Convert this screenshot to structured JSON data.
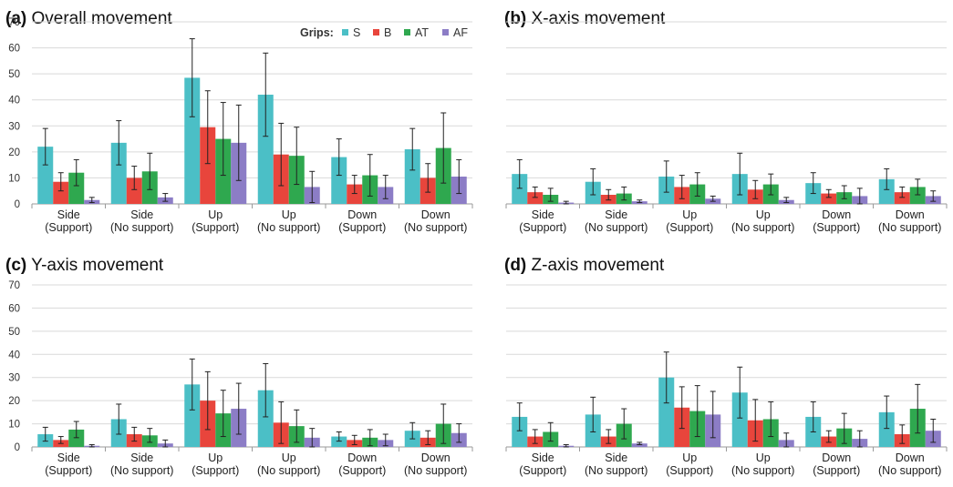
{
  "legend": {
    "title": "Grips:",
    "entries": [
      {
        "label": "S",
        "color": "#4BBFC6"
      },
      {
        "label": "B",
        "color": "#E8453C"
      },
      {
        "label": "AT",
        "color": "#2FA84F"
      },
      {
        "label": "AF",
        "color": "#8C7DC6"
      }
    ]
  },
  "chart_data": [
    {
      "type": "bar",
      "panel_letter": "(a)",
      "title": "Overall movement",
      "categories": [
        [
          "Side",
          "(Support)"
        ],
        [
          "Side",
          "(No support)"
        ],
        [
          "Up",
          "(Support)"
        ],
        [
          "Up",
          "(No support)"
        ],
        [
          "Down",
          "(Support)"
        ],
        [
          "Down",
          "(No support)"
        ]
      ],
      "ylim": [
        0,
        70
      ],
      "yticks": [
        0,
        10,
        20,
        30,
        40,
        50,
        60,
        70
      ],
      "show_ytick_labels": true,
      "grid": "horizontal",
      "show_legend": true,
      "legend_position": "top-right",
      "series": [
        {
          "name": "S",
          "values": [
            22,
            23.5,
            48.5,
            42,
            18,
            21
          ],
          "errors": [
            7,
            8.5,
            15,
            16,
            7,
            8
          ]
        },
        {
          "name": "B",
          "values": [
            8.5,
            10,
            29.5,
            19,
            7.5,
            10
          ],
          "errors": [
            3.5,
            4.5,
            14,
            12,
            3.5,
            5.5
          ]
        },
        {
          "name": "AT",
          "values": [
            12,
            12.5,
            25,
            18.5,
            11,
            21.5
          ],
          "errors": [
            5,
            7,
            14,
            11,
            8,
            13.5
          ]
        },
        {
          "name": "AF",
          "values": [
            1.5,
            2.5,
            23.5,
            6.5,
            6.5,
            10.5
          ],
          "errors": [
            1,
            1.5,
            14.5,
            6,
            4.5,
            6.5
          ]
        }
      ]
    },
    {
      "type": "bar",
      "panel_letter": "(b)",
      "title": "X-axis movement",
      "categories": [
        [
          "Side",
          "(Support)"
        ],
        [
          "Side",
          "(No support)"
        ],
        [
          "Up",
          "(Support)"
        ],
        [
          "Up",
          "(No support)"
        ],
        [
          "Down",
          "(Support)"
        ],
        [
          "Down",
          "(No support)"
        ]
      ],
      "ylim": [
        0,
        70
      ],
      "yticks": [
        0,
        10,
        20,
        30,
        40,
        50,
        60,
        70
      ],
      "show_ytick_labels": false,
      "grid": "horizontal",
      "show_legend": false,
      "series": [
        {
          "name": "S",
          "values": [
            11.5,
            8.5,
            10.5,
            11.5,
            8,
            9.5
          ],
          "errors": [
            5.5,
            5,
            6,
            8,
            4,
            4
          ]
        },
        {
          "name": "B",
          "values": [
            4.5,
            3.5,
            6.5,
            5.5,
            4,
            4.5
          ],
          "errors": [
            2,
            2,
            4.5,
            3.5,
            1.5,
            2
          ]
        },
        {
          "name": "AT",
          "values": [
            3.5,
            4,
            7.5,
            7.5,
            4.5,
            6.5
          ],
          "errors": [
            2.5,
            2.5,
            4.5,
            4,
            2.5,
            3
          ]
        },
        {
          "name": "AF",
          "values": [
            0.5,
            1,
            2,
            1.5,
            3,
            3
          ],
          "errors": [
            0.5,
            0.5,
            1,
            1,
            3,
            2
          ]
        }
      ]
    },
    {
      "type": "bar",
      "panel_letter": "(c)",
      "title": "Y-axis movement",
      "categories": [
        [
          "Side",
          "(Support)"
        ],
        [
          "Side",
          "(No support)"
        ],
        [
          "Up",
          "(Support)"
        ],
        [
          "Up",
          "(No support)"
        ],
        [
          "Down",
          "(Support)"
        ],
        [
          "Down",
          "(No support)"
        ]
      ],
      "ylim": [
        0,
        70
      ],
      "yticks": [
        0,
        10,
        20,
        30,
        40,
        50,
        60,
        70
      ],
      "show_ytick_labels": true,
      "grid": "horizontal",
      "show_legend": false,
      "series": [
        {
          "name": "S",
          "values": [
            5.5,
            12,
            27,
            24.5,
            4.5,
            7
          ],
          "errors": [
            3,
            6.5,
            11,
            11.5,
            2,
            3.5
          ]
        },
        {
          "name": "B",
          "values": [
            3,
            5.5,
            20,
            10.5,
            3,
            4
          ],
          "errors": [
            1.5,
            3,
            12.5,
            9,
            2,
            3
          ]
        },
        {
          "name": "AT",
          "values": [
            7.5,
            5,
            14.5,
            9,
            4,
            10
          ],
          "errors": [
            3.5,
            3,
            10,
            7,
            3.5,
            8.5
          ]
        },
        {
          "name": "AF",
          "values": [
            0.5,
            1.5,
            16.5,
            4,
            3,
            6
          ],
          "errors": [
            0.5,
            1.5,
            11,
            4,
            2.5,
            4
          ]
        }
      ]
    },
    {
      "type": "bar",
      "panel_letter": "(d)",
      "title": "Z-axis movement",
      "categories": [
        [
          "Side",
          "(Support)"
        ],
        [
          "Side",
          "(No support)"
        ],
        [
          "Up",
          "(Support)"
        ],
        [
          "Up",
          "(No support)"
        ],
        [
          "Down",
          "(Support)"
        ],
        [
          "Down",
          "(No support)"
        ]
      ],
      "ylim": [
        0,
        70
      ],
      "yticks": [
        0,
        10,
        20,
        30,
        40,
        50,
        60,
        70
      ],
      "show_ytick_labels": false,
      "grid": "horizontal",
      "show_legend": false,
      "series": [
        {
          "name": "S",
          "values": [
            13,
            14,
            30,
            23.5,
            13,
            15
          ],
          "errors": [
            6,
            7.5,
            11,
            11,
            6.5,
            7
          ]
        },
        {
          "name": "B",
          "values": [
            4.5,
            4.5,
            17,
            11.5,
            4.5,
            5.5
          ],
          "errors": [
            3,
            3,
            9,
            9,
            2.5,
            4
          ]
        },
        {
          "name": "AT",
          "values": [
            6.5,
            10,
            15.5,
            12,
            8,
            16.5
          ],
          "errors": [
            4,
            6.5,
            11,
            7.5,
            6.5,
            10.5
          ]
        },
        {
          "name": "AF",
          "values": [
            0.5,
            1.5,
            14,
            3,
            3.5,
            7
          ],
          "errors": [
            0.5,
            0.5,
            10,
            3,
            3.5,
            5
          ]
        }
      ]
    }
  ]
}
